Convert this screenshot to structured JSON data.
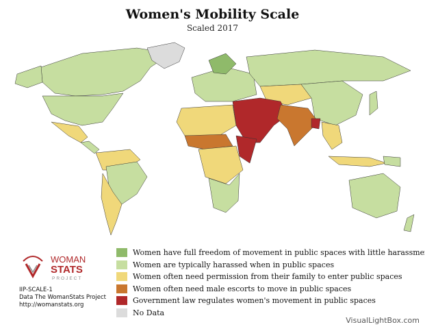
{
  "title": "Women's Mobility Scale",
  "subtitle": "Scaled 2017",
  "legend": [
    {
      "label": "Women have full freedom of movement in public spaces with little harassment",
      "color": "#8fba6a"
    },
    {
      "label": "Women are typically harassed when in public spaces",
      "color": "#c6dea0"
    },
    {
      "label": "Women often need permission from their family to enter public spaces",
      "color": "#f0d87a"
    },
    {
      "label": "Women often need male escorts to move in public spaces",
      "color": "#c9772f"
    },
    {
      "label": "Government law regulates women's movement in public spaces",
      "color": "#b0282a"
    },
    {
      "label": "No Data",
      "color": "#dcdcdc"
    }
  ],
  "logo": {
    "line1": "WOMAN",
    "line2": "STATS",
    "line3": "PROJECT"
  },
  "meta": {
    "code": "IIP-SCALE-1",
    "source": "Data The WomanStats Project",
    "url": "http://womanstats.org"
  },
  "credit": "VisualLightBox.com"
}
